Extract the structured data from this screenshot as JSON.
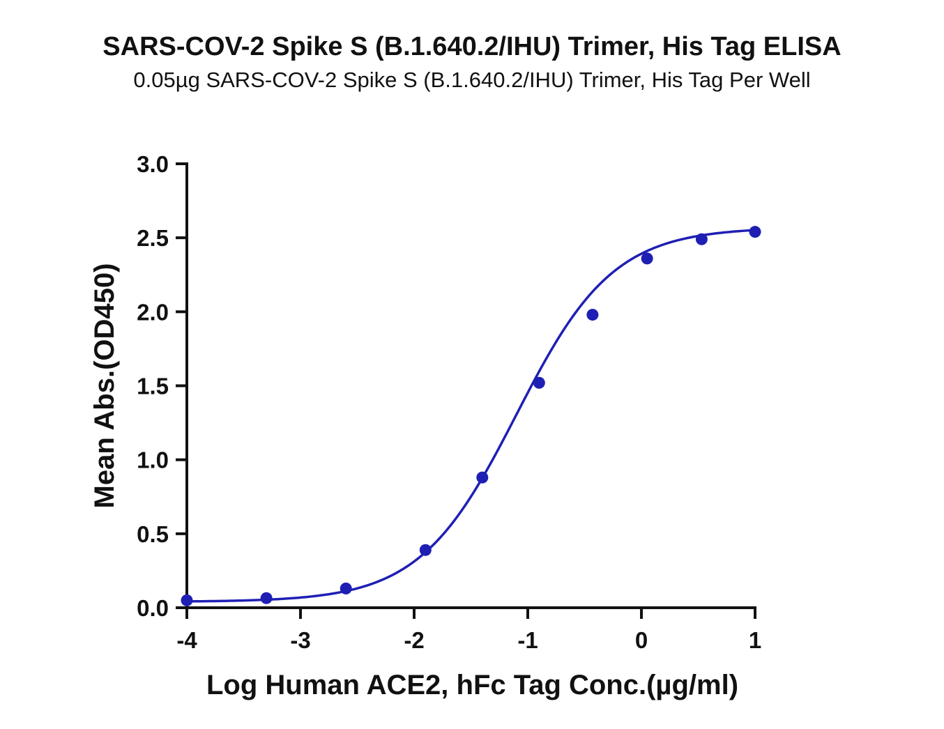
{
  "chart_data": {
    "type": "scatter",
    "title": "SARS-COV-2 Spike S (B.1.640.2/IHU) Trimer, His Tag ELISA",
    "subtitle": "0.05µg SARS-COV-2 Spike S (B.1.640.2/IHU) Trimer, His Tag Per Well",
    "xlabel": "Log Human ACE2, hFc Tag Conc.(µg/ml)",
    "ylabel": "Mean Abs.(OD450)",
    "xlim": [
      -4,
      1
    ],
    "ylim": [
      0,
      3
    ],
    "xticks": [
      -4,
      -3,
      -2,
      -1,
      0,
      1
    ],
    "xtick_labels": [
      "-4",
      "-3",
      "-2",
      "-1",
      "0",
      "1"
    ],
    "yticks": [
      0,
      0.5,
      1,
      1.5,
      2,
      2.5,
      3
    ],
    "ytick_labels": [
      "0.0",
      "0.5",
      "1.0",
      "1.5",
      "2.0",
      "2.5",
      "3.0"
    ],
    "grid": false,
    "legend": "none",
    "color": "#1f1fb4",
    "series": [
      {
        "x": [
          -4.0,
          -3.3,
          -2.6,
          -1.9,
          -1.4,
          -0.9,
          -0.43,
          0.05,
          0.53,
          1.0
        ],
        "y": [
          0.05,
          0.065,
          0.13,
          0.39,
          0.88,
          1.52,
          1.98,
          2.36,
          2.49,
          2.54
        ]
      }
    ],
    "fit_curve": {
      "type": "4PL",
      "bottom": 0.04,
      "top": 2.57,
      "log_ec50": -1.1,
      "hill_slope": 1.02
    }
  }
}
